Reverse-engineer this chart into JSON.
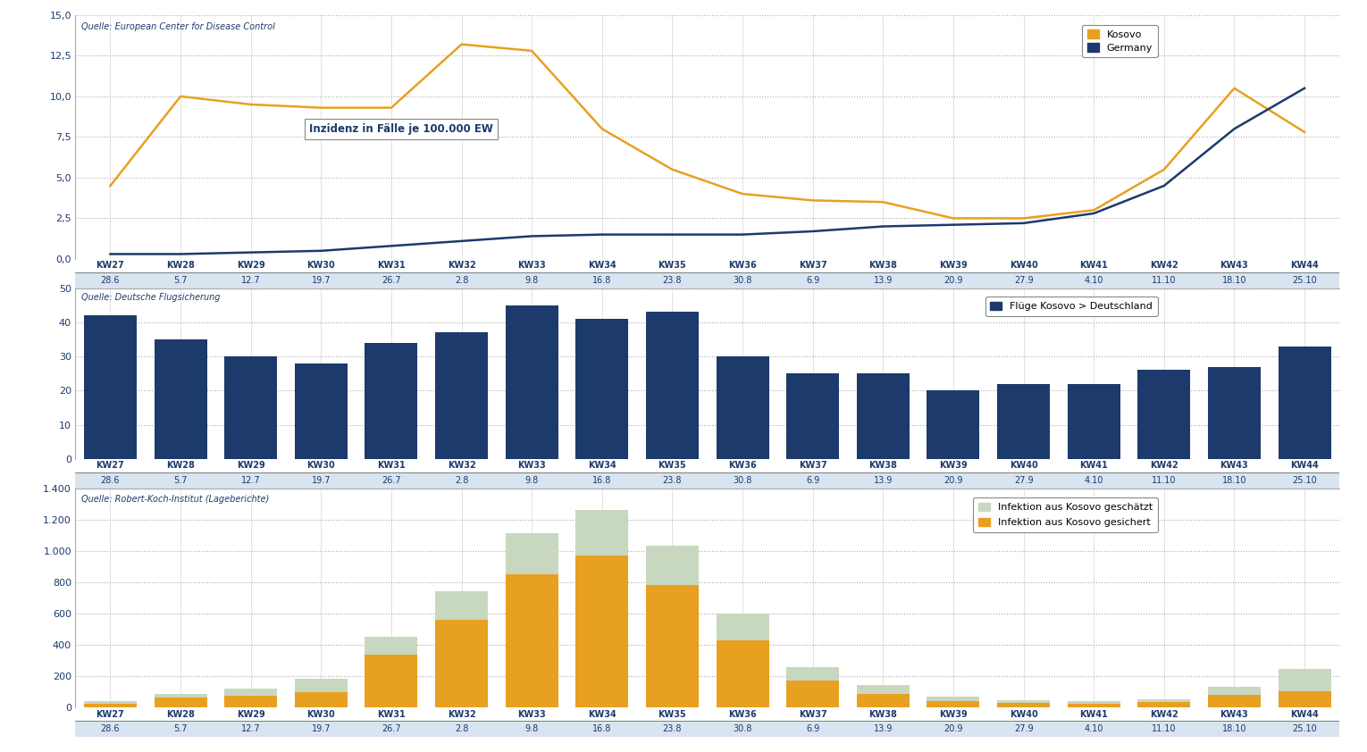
{
  "weeks": [
    "KW27",
    "KW28",
    "KW29",
    "KW30",
    "KW31",
    "KW32",
    "KW33",
    "KW34",
    "KW35",
    "KW36",
    "KW37",
    "KW38",
    "KW39",
    "KW40",
    "KW41",
    "KW42",
    "KW43",
    "KW44"
  ],
  "dates": [
    "28.6",
    "5.7",
    "12.7",
    "19.7",
    "26.7",
    "2.8",
    "9.8",
    "16.8",
    "23.8",
    "30.8",
    "6.9",
    "13.9",
    "20.9",
    "27.9",
    "4.10",
    "11.10",
    "18.10",
    "25.10"
  ],
  "kosovo_incidence": [
    4.5,
    10.0,
    9.5,
    9.3,
    9.3,
    13.2,
    12.8,
    8.0,
    5.5,
    4.0,
    3.6,
    3.5,
    2.5,
    2.5,
    3.0,
    5.5,
    10.5,
    7.8
  ],
  "germany_incidence": [
    0.3,
    0.3,
    0.4,
    0.5,
    0.8,
    1.1,
    1.4,
    1.5,
    1.5,
    1.5,
    1.7,
    2.0,
    2.1,
    2.2,
    2.8,
    4.5,
    8.0,
    10.5
  ],
  "flights": [
    42,
    35,
    30,
    28,
    34,
    37,
    45,
    41,
    43,
    30,
    25,
    25,
    20,
    22,
    22,
    26,
    27,
    33
  ],
  "infections_confirmed": [
    25,
    65,
    75,
    100,
    340,
    560,
    850,
    970,
    780,
    430,
    175,
    90,
    40,
    30,
    25,
    35,
    80,
    105
  ],
  "infections_estimated": [
    15,
    20,
    45,
    85,
    115,
    185,
    265,
    290,
    255,
    170,
    85,
    55,
    30,
    20,
    15,
    20,
    55,
    140
  ],
  "kosovo_color": "#E8A020",
  "germany_color": "#1C3A6B",
  "flights_color": "#1C3A6B",
  "confirmed_color": "#E8A020",
  "estimated_color": "#C8D8C0",
  "date_band_color": "#D8E4F0",
  "source1": "Quelle: European Center for Disease Control",
  "source2": "Quelle: Deutsche Flugsicherung",
  "source3": "Quelle: Robert-Koch-Institut (Lageberichte)",
  "label_kosovo": "Kosovo",
  "label_germany": "Germany",
  "label_flights": "Flüge Kosovo > Deutschland",
  "label_confirmed": "Infektion aus Kosovo gesichert",
  "label_estimated": "Infektion aus Kosovo geschätzt",
  "annotation_incidence": "Inzidenz in Fälle je 100.000 EW",
  "ylim1": [
    0,
    15
  ],
  "yticks1": [
    0.0,
    2.5,
    5.0,
    7.5,
    10.0,
    12.5,
    15.0
  ],
  "ylim2": [
    0,
    50
  ],
  "yticks2": [
    0,
    10,
    20,
    30,
    40,
    50
  ],
  "ylim3": [
    0,
    1400
  ],
  "yticks3": [
    0,
    200,
    400,
    600,
    800,
    1000,
    1200,
    1400
  ]
}
